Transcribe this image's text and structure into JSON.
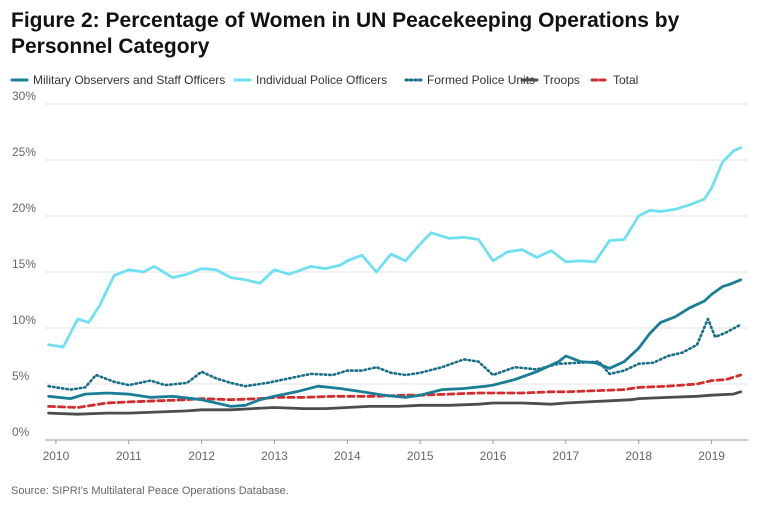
{
  "title": "Figure 2: Percentage of Women in UN Peacekeeping Operations by Personnel Category",
  "source": "Source: SIPRI's Multilateral Peace Operations Database.",
  "chart_data": {
    "type": "line",
    "xlim": [
      2009.85,
      2019.5
    ],
    "ylim": [
      0,
      30
    ],
    "y_ticks": [
      0,
      5,
      10,
      15,
      20,
      25,
      30
    ],
    "y_tick_labels": [
      "0%",
      "5%",
      "10%",
      "15%",
      "20%",
      "25%",
      "30%"
    ],
    "x_ticks": [
      2010,
      2011,
      2012,
      2013,
      2014,
      2015,
      2016,
      2017,
      2018,
      2019
    ],
    "x_tick_labels": [
      "2010",
      "2011",
      "2012",
      "2013",
      "2014",
      "2015",
      "2016",
      "2017",
      "2018",
      "2019"
    ],
    "grid": "horizontal",
    "legend_position": "top",
    "series": [
      {
        "name": "Military Observers and Staff Officers",
        "color": "#1a7f96",
        "style": "solid",
        "x": [
          2009.9,
          2010.2,
          2010.4,
          2010.7,
          2011.0,
          2011.3,
          2011.6,
          2012.0,
          2012.2,
          2012.4,
          2012.6,
          2012.8,
          2013.0,
          2013.3,
          2013.6,
          2013.9,
          2014.2,
          2014.5,
          2014.8,
          2015.0,
          2015.3,
          2015.6,
          2015.9,
          2016.0,
          2016.3,
          2016.6,
          2016.9,
          2017.0,
          2017.2,
          2017.4,
          2017.6,
          2017.8,
          2018.0,
          2018.15,
          2018.3,
          2018.5,
          2018.7,
          2018.9,
          2019.0,
          2019.15,
          2019.25,
          2019.4
        ],
        "values": [
          3.9,
          3.7,
          4.1,
          4.2,
          4.1,
          3.8,
          3.9,
          3.6,
          3.3,
          3.0,
          3.1,
          3.6,
          3.9,
          4.3,
          4.8,
          4.6,
          4.3,
          4.0,
          3.8,
          4.0,
          4.5,
          4.6,
          4.8,
          4.9,
          5.4,
          6.1,
          7.0,
          7.5,
          7.0,
          6.9,
          6.4,
          7.0,
          8.2,
          9.5,
          10.5,
          11.0,
          11.8,
          12.4,
          13.0,
          13.7,
          13.9,
          14.3
        ]
      },
      {
        "name": "Individual Police Officers",
        "color": "#6ee0f2",
        "style": "solid",
        "x": [
          2009.9,
          2010.1,
          2010.3,
          2010.45,
          2010.6,
          2010.8,
          2011.0,
          2011.2,
          2011.35,
          2011.6,
          2011.8,
          2012.0,
          2012.2,
          2012.4,
          2012.6,
          2012.8,
          2013.0,
          2013.2,
          2013.5,
          2013.7,
          2013.9,
          2014.0,
          2014.2,
          2014.4,
          2014.6,
          2014.8,
          2015.0,
          2015.15,
          2015.4,
          2015.6,
          2015.8,
          2016.0,
          2016.2,
          2016.4,
          2016.6,
          2016.8,
          2017.0,
          2017.2,
          2017.4,
          2017.6,
          2017.8,
          2018.0,
          2018.15,
          2018.3,
          2018.5,
          2018.7,
          2018.9,
          2019.0,
          2019.15,
          2019.3,
          2019.4
        ],
        "values": [
          8.5,
          8.3,
          10.8,
          10.5,
          12.0,
          14.7,
          15.2,
          15.0,
          15.5,
          14.5,
          14.8,
          15.3,
          15.2,
          14.5,
          14.3,
          14.0,
          15.2,
          14.8,
          15.5,
          15.3,
          15.6,
          16.0,
          16.5,
          15.0,
          16.6,
          16.0,
          17.5,
          18.5,
          18.0,
          18.1,
          17.9,
          16.0,
          16.8,
          17.0,
          16.3,
          16.9,
          15.9,
          16.0,
          15.9,
          17.8,
          17.9,
          20.0,
          20.5,
          20.4,
          20.6,
          21.0,
          21.5,
          22.5,
          24.8,
          25.8,
          26.1
        ]
      },
      {
        "name": "Formed Police Units",
        "color": "#176e86",
        "style": "dotted",
        "x": [
          2009.9,
          2010.2,
          2010.4,
          2010.55,
          2010.8,
          2011.0,
          2011.3,
          2011.5,
          2011.8,
          2012.0,
          2012.2,
          2012.4,
          2012.6,
          2012.9,
          2013.2,
          2013.5,
          2013.8,
          2014.0,
          2014.2,
          2014.4,
          2014.6,
          2014.8,
          2015.0,
          2015.3,
          2015.6,
          2015.8,
          2016.0,
          2016.3,
          2016.6,
          2016.9,
          2017.2,
          2017.45,
          2017.6,
          2017.8,
          2018.0,
          2018.2,
          2018.4,
          2018.6,
          2018.8,
          2018.95,
          2019.05,
          2019.2,
          2019.4
        ],
        "values": [
          4.8,
          4.5,
          4.7,
          5.8,
          5.2,
          4.9,
          5.3,
          4.9,
          5.1,
          6.1,
          5.5,
          5.1,
          4.8,
          5.1,
          5.5,
          5.9,
          5.8,
          6.2,
          6.2,
          6.5,
          6.0,
          5.8,
          6.0,
          6.5,
          7.2,
          7.0,
          5.8,
          6.5,
          6.3,
          6.8,
          6.9,
          7.0,
          5.9,
          6.2,
          6.8,
          6.9,
          7.5,
          7.8,
          8.5,
          10.8,
          9.2,
          9.6,
          10.3
        ]
      },
      {
        "name": "Troops",
        "color": "#4d4d4d",
        "style": "solid",
        "x": [
          2009.9,
          2010.3,
          2010.7,
          2011.0,
          2011.4,
          2011.8,
          2012.0,
          2012.4,
          2012.7,
          2013.0,
          2013.4,
          2013.7,
          2014.0,
          2014.3,
          2014.7,
          2015.0,
          2015.4,
          2015.8,
          2016.0,
          2016.4,
          2016.8,
          2017.0,
          2017.3,
          2017.6,
          2017.9,
          2018.0,
          2018.4,
          2018.8,
          2019.0,
          2019.3,
          2019.4
        ],
        "values": [
          2.4,
          2.3,
          2.4,
          2.4,
          2.5,
          2.6,
          2.7,
          2.7,
          2.8,
          2.9,
          2.8,
          2.8,
          2.9,
          3.0,
          3.0,
          3.1,
          3.1,
          3.2,
          3.3,
          3.3,
          3.2,
          3.3,
          3.4,
          3.5,
          3.6,
          3.7,
          3.8,
          3.9,
          4.0,
          4.1,
          4.3
        ]
      },
      {
        "name": "Total",
        "color": "#d62b2b",
        "style": "dashed",
        "x": [
          2009.9,
          2010.3,
          2010.7,
          2011.0,
          2011.4,
          2011.8,
          2012.0,
          2012.4,
          2012.8,
          2013.0,
          2013.4,
          2013.8,
          2014.0,
          2014.4,
          2014.8,
          2015.0,
          2015.4,
          2015.8,
          2016.0,
          2016.4,
          2016.8,
          2017.0,
          2017.4,
          2017.8,
          2018.0,
          2018.4,
          2018.8,
          2019.0,
          2019.2,
          2019.4
        ],
        "values": [
          3.0,
          2.9,
          3.3,
          3.4,
          3.5,
          3.6,
          3.7,
          3.6,
          3.7,
          3.8,
          3.8,
          3.9,
          3.9,
          3.9,
          4.0,
          4.0,
          4.1,
          4.2,
          4.2,
          4.2,
          4.3,
          4.3,
          4.4,
          4.5,
          4.7,
          4.8,
          5.0,
          5.3,
          5.4,
          5.8
        ]
      }
    ]
  }
}
